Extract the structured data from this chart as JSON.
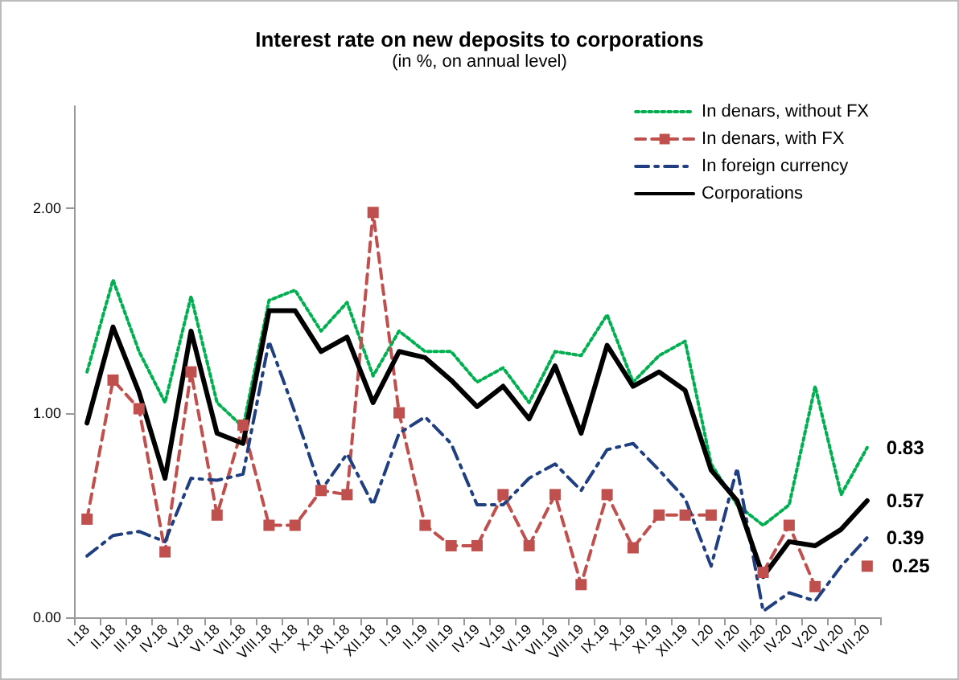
{
  "chart_data": {
    "type": "line",
    "title": "Interest rate on new deposits to corporations",
    "subtitle": "(in %, on annual level)",
    "categories": [
      "I.18",
      "II.18",
      "III.18",
      "IV.18",
      "V.18",
      "VI.18",
      "VII.18",
      "VIII.18",
      "IX.18",
      "X.18",
      "XI.18",
      "XII.18",
      "I.19",
      "II.19",
      "III.19",
      "IV.19",
      "V.19",
      "VI.19",
      "VII.19",
      "VIII.19",
      "IX.19",
      "X.19",
      "XI.19",
      "XII.19",
      "I.20",
      "II.20",
      "III.20",
      "IV.20",
      "V.20",
      "VI.20",
      "VII.20"
    ],
    "series": [
      {
        "name": "In denars, without FX",
        "color": "#00b050",
        "line_style": "dotted",
        "marker": "none",
        "values": [
          1.2,
          1.65,
          1.3,
          1.05,
          1.57,
          1.05,
          0.93,
          1.55,
          1.6,
          1.4,
          1.54,
          1.18,
          1.4,
          1.3,
          1.3,
          1.15,
          1.22,
          1.05,
          1.3,
          1.28,
          1.48,
          1.15,
          1.28,
          1.35,
          0.75,
          0.55,
          0.45,
          0.55,
          1.13,
          0.6,
          0.83
        ],
        "value_labels": [
          null,
          null,
          null,
          null,
          null,
          null,
          null,
          null,
          null,
          null,
          null,
          null,
          null,
          null,
          null,
          null,
          null,
          null,
          null,
          null,
          null,
          null,
          null,
          null,
          null,
          null,
          null,
          null,
          null,
          null,
          "0.83"
        ]
      },
      {
        "name": "In denars, with FX",
        "color": "#c0504d",
        "line_style": "dashed",
        "marker": "square",
        "values": [
          0.48,
          1.16,
          1.02,
          0.32,
          1.2,
          0.5,
          0.94,
          0.45,
          0.45,
          0.62,
          0.6,
          1.98,
          1.0,
          0.45,
          0.35,
          0.35,
          0.6,
          0.35,
          0.6,
          0.16,
          0.6,
          0.34,
          0.5,
          0.5,
          0.5,
          null,
          0.22,
          0.45,
          0.15,
          null,
          0.25
        ],
        "value_labels": [
          null,
          null,
          null,
          null,
          null,
          null,
          null,
          null,
          null,
          null,
          null,
          null,
          null,
          null,
          null,
          null,
          null,
          null,
          null,
          null,
          null,
          null,
          null,
          null,
          null,
          null,
          null,
          null,
          null,
          null,
          "0.25"
        ]
      },
      {
        "name": "In foreign currency",
        "color": "#1f3f80",
        "line_style": "dashdot",
        "marker": "none",
        "values": [
          0.3,
          0.4,
          0.42,
          0.37,
          0.68,
          0.67,
          0.7,
          1.35,
          1.0,
          0.62,
          0.8,
          0.55,
          0.9,
          0.98,
          0.85,
          0.55,
          0.55,
          0.68,
          0.75,
          0.62,
          0.82,
          0.85,
          0.72,
          0.58,
          0.25,
          0.73,
          0.03,
          0.12,
          0.08,
          0.25,
          0.39
        ],
        "value_labels": [
          null,
          null,
          null,
          null,
          null,
          null,
          null,
          null,
          null,
          null,
          null,
          null,
          null,
          null,
          null,
          null,
          null,
          null,
          null,
          null,
          null,
          null,
          null,
          null,
          null,
          null,
          null,
          null,
          null,
          null,
          "0.39"
        ]
      },
      {
        "name": "Corporations",
        "color": "#000000",
        "line_style": "solid",
        "marker": "none",
        "values": [
          0.95,
          1.42,
          1.1,
          0.68,
          1.4,
          0.9,
          0.85,
          1.5,
          1.5,
          1.3,
          1.37,
          1.05,
          1.3,
          1.27,
          1.16,
          1.03,
          1.13,
          0.97,
          1.23,
          0.9,
          1.33,
          1.13,
          1.2,
          1.11,
          0.72,
          0.57,
          0.2,
          0.37,
          0.35,
          0.43,
          0.57
        ],
        "value_labels": [
          null,
          null,
          null,
          null,
          null,
          null,
          null,
          null,
          null,
          null,
          null,
          null,
          null,
          null,
          null,
          null,
          null,
          null,
          null,
          null,
          null,
          null,
          null,
          null,
          null,
          null,
          null,
          null,
          null,
          null,
          "0.57"
        ]
      }
    ],
    "ylim": [
      0,
      2.5
    ],
    "yticks": [
      {
        "value": 0,
        "label": "0.00"
      },
      {
        "value": 1,
        "label": "1.00"
      },
      {
        "value": 2,
        "label": "2.00"
      }
    ],
    "grid": false,
    "legend": "top right"
  }
}
